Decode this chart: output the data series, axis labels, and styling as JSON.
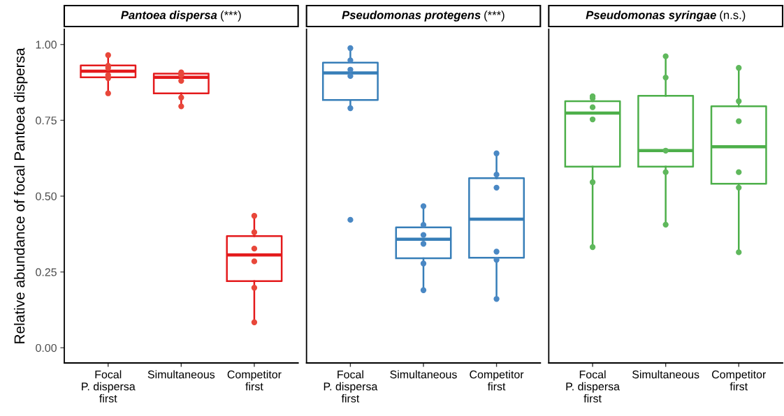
{
  "chart_data": [
    {
      "type": "box",
      "title": "Pantoea dispersa (***)",
      "ylabel": "Relative abundance of focal Pantoea dispersa",
      "categories": [
        "Focal\nP. dispersa\nfirst",
        "Simultaneous",
        "Competitor\nfirst"
      ],
      "ylim": [
        -0.05,
        1.05
      ],
      "yticks": [
        {
          "value": 0,
          "label": "0.00"
        },
        0.25,
        {
          "value": 0.5,
          "label": "0.50"
        },
        0.75,
        {
          "value": 1,
          "label": "1.00"
        }
      ],
      "series": [
        {
          "color": "#e41a1c",
          "boxes": [
            {
              "low": 0.839,
              "q1": 0.892,
              "median": 0.912,
              "q3": 0.931,
              "high": 0.965
            },
            {
              "low": 0.796,
              "q1": 0.839,
              "median": 0.892,
              "q3": 0.904,
              "high": 0.908
            },
            {
              "low": 0.084,
              "q1": 0.22,
              "median": 0.306,
              "q3": 0.368,
              "high": 0.435
            }
          ]
        },
        {
          "type": "scatter",
          "color": "#e8473a",
          "x": [
            "Focal\nP. dispersa\nfirst",
            "Focal\nP. dispersa\nfirst",
            "Focal\nP. dispersa\nfirst",
            "Focal\nP. dispersa\nfirst",
            "Focal\nP. dispersa\nfirst",
            "Focal\nP. dispersa\nfirst",
            "Simultaneous",
            "Simultaneous",
            "Simultaneous",
            "Simultaneous",
            "Simultaneous",
            "Competitor\nfirst",
            "Competitor\nfirst",
            "Competitor\nfirst",
            "Competitor\nfirst",
            "Competitor\nfirst",
            "Competitor\nfirst"
          ],
          "values": [
            0.965,
            0.93,
            0.923,
            0.899,
            0.889,
            0.839,
            0.908,
            0.899,
            0.88,
            0.825,
            0.796,
            0.435,
            0.381,
            0.327,
            0.285,
            0.198,
            0.084
          ]
        }
      ]
    },
    {
      "type": "box",
      "title": "Pseudomonas protegens (***)",
      "categories": [
        "Focal\nP. dispersa\nfirst",
        "Simultaneous",
        "Competitor\nfirst"
      ],
      "ylim": [
        -0.05,
        1.05
      ],
      "tick_labels": "x",
      "series": [
        {
          "color": "#377eb8",
          "boxes": [
            {
              "low": 0.79,
              "q1": 0.817,
              "median": 0.906,
              "q3": 0.94,
              "high": 0.988
            },
            {
              "low": 0.19,
              "q1": 0.295,
              "median": 0.358,
              "q3": 0.397,
              "high": 0.467
            },
            {
              "low": 0.161,
              "q1": 0.297,
              "median": 0.424,
              "q3": 0.559,
              "high": 0.641
            }
          ]
        },
        {
          "type": "scatter",
          "color": "#4a88c4",
          "x": [
            "Focal\nP. dispersa\nfirst",
            "Focal\nP. dispersa\nfirst",
            "Focal\nP. dispersa\nfirst",
            "Focal\nP. dispersa\nfirst",
            "Focal\nP. dispersa\nfirst",
            "Focal\nP. dispersa\nfirst",
            "Simultaneous",
            "Simultaneous",
            "Simultaneous",
            "Simultaneous",
            "Simultaneous",
            "Simultaneous",
            "Competitor\nfirst",
            "Competitor\nfirst",
            "Competitor\nfirst",
            "Competitor\nfirst",
            "Competitor\nfirst",
            "Competitor\nfirst"
          ],
          "values": [
            0.988,
            0.948,
            0.917,
            0.896,
            0.79,
            0.422,
            0.467,
            0.405,
            0.372,
            0.343,
            0.278,
            0.19,
            0.641,
            0.571,
            0.528,
            0.317,
            0.29,
            0.161
          ]
        }
      ]
    },
    {
      "type": "box",
      "title": "Pseudomonas syringae (n.s.)",
      "categories": [
        "Focal\nP. dispersa\nfirst",
        "Simultaneous",
        "Competitor\nfirst"
      ],
      "ylim": [
        -0.05,
        1.05
      ],
      "tick_labels": "x",
      "series": [
        {
          "color": "#4daf4a",
          "boxes": [
            {
              "low": 0.332,
              "q1": 0.597,
              "median": 0.774,
              "q3": 0.813,
              "high": 0.829
            },
            {
              "low": 0.406,
              "q1": 0.597,
              "median": 0.65,
              "q3": 0.831,
              "high": 0.961
            },
            {
              "low": 0.315,
              "q1": 0.541,
              "median": 0.663,
              "q3": 0.796,
              "high": 0.923
            }
          ]
        },
        {
          "type": "scatter",
          "color": "#5fb85c",
          "x": [
            "Focal\nP. dispersa\nfirst",
            "Focal\nP. dispersa\nfirst",
            "Focal\nP. dispersa\nfirst",
            "Focal\nP. dispersa\nfirst",
            "Focal\nP. dispersa\nfirst",
            "Focal\nP. dispersa\nfirst",
            "Simultaneous",
            "Simultaneous",
            "Simultaneous",
            "Simultaneous",
            "Simultaneous",
            "Competitor\nfirst",
            "Competitor\nfirst",
            "Competitor\nfirst",
            "Competitor\nfirst",
            "Competitor\nfirst",
            "Competitor\nfirst"
          ],
          "values": [
            0.829,
            0.823,
            0.793,
            0.753,
            0.546,
            0.332,
            0.961,
            0.891,
            0.65,
            0.579,
            0.406,
            0.923,
            0.813,
            0.747,
            0.579,
            0.528,
            0.315
          ]
        }
      ]
    }
  ]
}
